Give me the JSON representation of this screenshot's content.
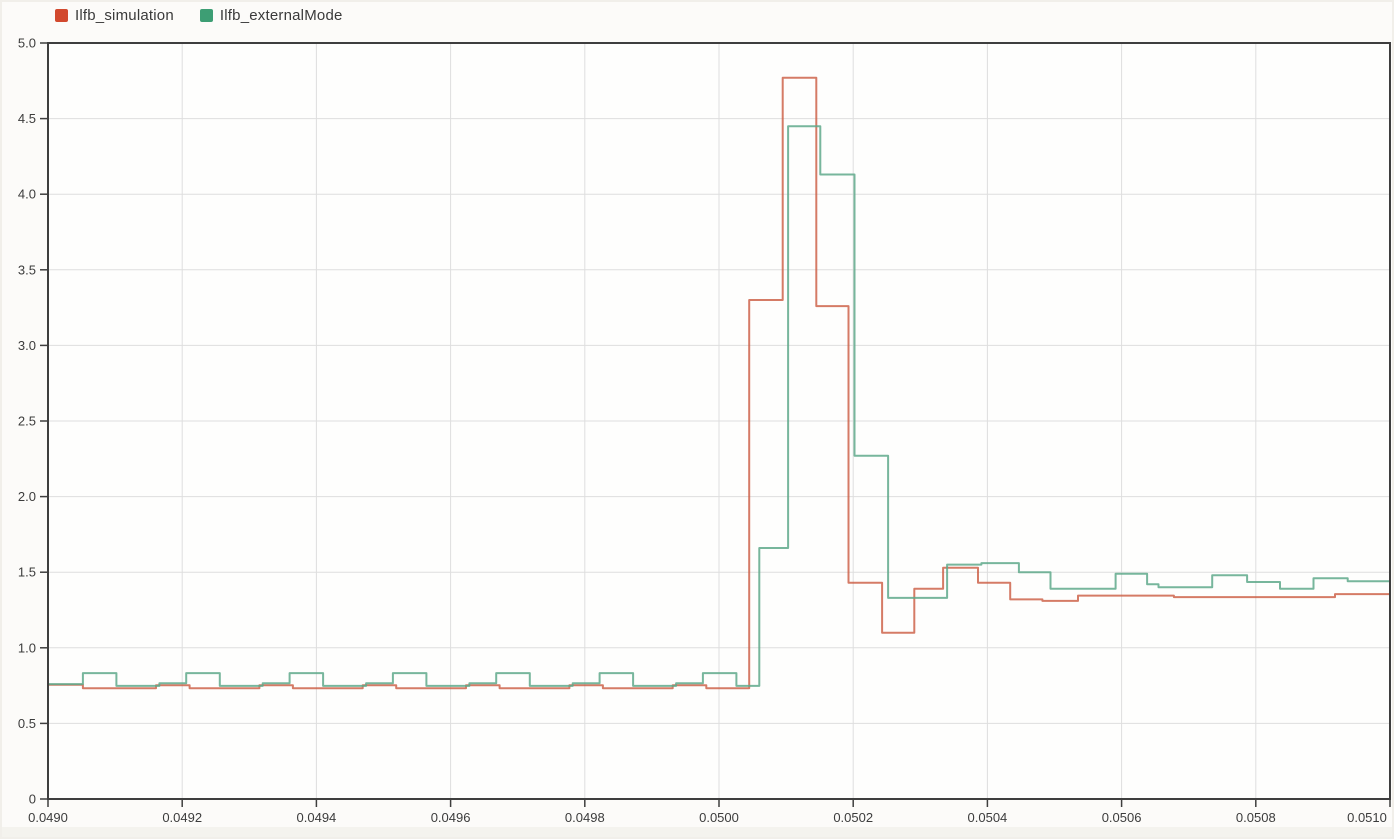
{
  "legend": {
    "items": [
      {
        "label": "Ilfb_simulation",
        "color": "#D2492E"
      },
      {
        "label": "Ilfb_externalMode",
        "color": "#3D9E74"
      }
    ]
  },
  "axes": {
    "line_color": "#3E3E3E",
    "grid_color": "#DEDEDE",
    "tick_label_color": "#3C3C3C",
    "plot_bg": "#FEFEFD"
  },
  "chart_data": {
    "type": "line",
    "step": true,
    "grid": true,
    "legend_position": "top-left",
    "xlim": [
      0.049,
      0.051
    ],
    "ylim": [
      0,
      5
    ],
    "x_ticks": [
      0.049,
      0.0492,
      0.0494,
      0.0496,
      0.0498,
      0.05,
      0.0502,
      0.0504,
      0.0506,
      0.0508,
      0.051
    ],
    "x_tick_labels": [
      "0.0490",
      "0.0492",
      "0.0494",
      "0.0496",
      "0.0498",
      "0.0500",
      "0.0502",
      "0.0504",
      "0.0506",
      "0.0508",
      "0.0510"
    ],
    "y_ticks": [
      0,
      0.5,
      1.0,
      1.5,
      2.0,
      2.5,
      3.0,
      3.5,
      4.0,
      4.5,
      5.0
    ],
    "y_tick_labels": [
      "0",
      "0.5",
      "1.0",
      "1.5",
      "2.0",
      "2.5",
      "3.0",
      "3.5",
      "4.0",
      "4.5",
      "5.0"
    ],
    "series": [
      {
        "name": "Ilfb_simulation",
        "color": "#CB5A40",
        "opacity": 0.8,
        "points": [
          [
            0.049,
            0.755
          ],
          [
            0.049052,
            0.732
          ],
          [
            0.049161,
            0.752
          ],
          [
            0.049211,
            0.732
          ],
          [
            0.049315,
            0.752
          ],
          [
            0.049365,
            0.732
          ],
          [
            0.049469,
            0.752
          ],
          [
            0.049519,
            0.732
          ],
          [
            0.049623,
            0.752
          ],
          [
            0.049673,
            0.732
          ],
          [
            0.049777,
            0.752
          ],
          [
            0.049827,
            0.732
          ],
          [
            0.049931,
            0.752
          ],
          [
            0.049981,
            0.732
          ],
          [
            0.050045,
            3.3
          ],
          [
            0.050095,
            4.77
          ],
          [
            0.050145,
            3.26
          ],
          [
            0.050193,
            1.43
          ],
          [
            0.050243,
            1.1
          ],
          [
            0.050291,
            1.39
          ],
          [
            0.050334,
            1.53
          ],
          [
            0.050386,
            1.43
          ],
          [
            0.050434,
            1.32
          ],
          [
            0.050482,
            1.31
          ],
          [
            0.050535,
            1.345
          ],
          [
            0.050678,
            1.335
          ],
          [
            0.050918,
            1.355
          ]
        ]
      },
      {
        "name": "Ilfb_externalMode",
        "color": "#5FA98B",
        "opacity": 0.85,
        "points": [
          [
            0.049,
            0.76
          ],
          [
            0.049052,
            0.833
          ],
          [
            0.049102,
            0.748
          ],
          [
            0.049166,
            0.765
          ],
          [
            0.049206,
            0.833
          ],
          [
            0.049256,
            0.748
          ],
          [
            0.04932,
            0.765
          ],
          [
            0.04936,
            0.833
          ],
          [
            0.04941,
            0.748
          ],
          [
            0.049474,
            0.765
          ],
          [
            0.049514,
            0.833
          ],
          [
            0.049564,
            0.748
          ],
          [
            0.049628,
            0.765
          ],
          [
            0.049668,
            0.833
          ],
          [
            0.049718,
            0.748
          ],
          [
            0.049782,
            0.765
          ],
          [
            0.049822,
            0.833
          ],
          [
            0.049872,
            0.748
          ],
          [
            0.049936,
            0.765
          ],
          [
            0.049976,
            0.833
          ],
          [
            0.050026,
            0.748
          ],
          [
            0.05006,
            1.66
          ],
          [
            0.050103,
            4.45
          ],
          [
            0.050151,
            4.13
          ],
          [
            0.050202,
            2.27
          ],
          [
            0.050252,
            1.33
          ],
          [
            0.05034,
            1.55
          ],
          [
            0.050391,
            1.56
          ],
          [
            0.050447,
            1.5
          ],
          [
            0.050494,
            1.39
          ],
          [
            0.050591,
            1.49
          ],
          [
            0.050638,
            1.42
          ],
          [
            0.050655,
            1.4
          ],
          [
            0.050735,
            1.48
          ],
          [
            0.050787,
            1.435
          ],
          [
            0.050836,
            1.39
          ],
          [
            0.050886,
            1.46
          ],
          [
            0.050937,
            1.44
          ]
        ]
      }
    ]
  }
}
